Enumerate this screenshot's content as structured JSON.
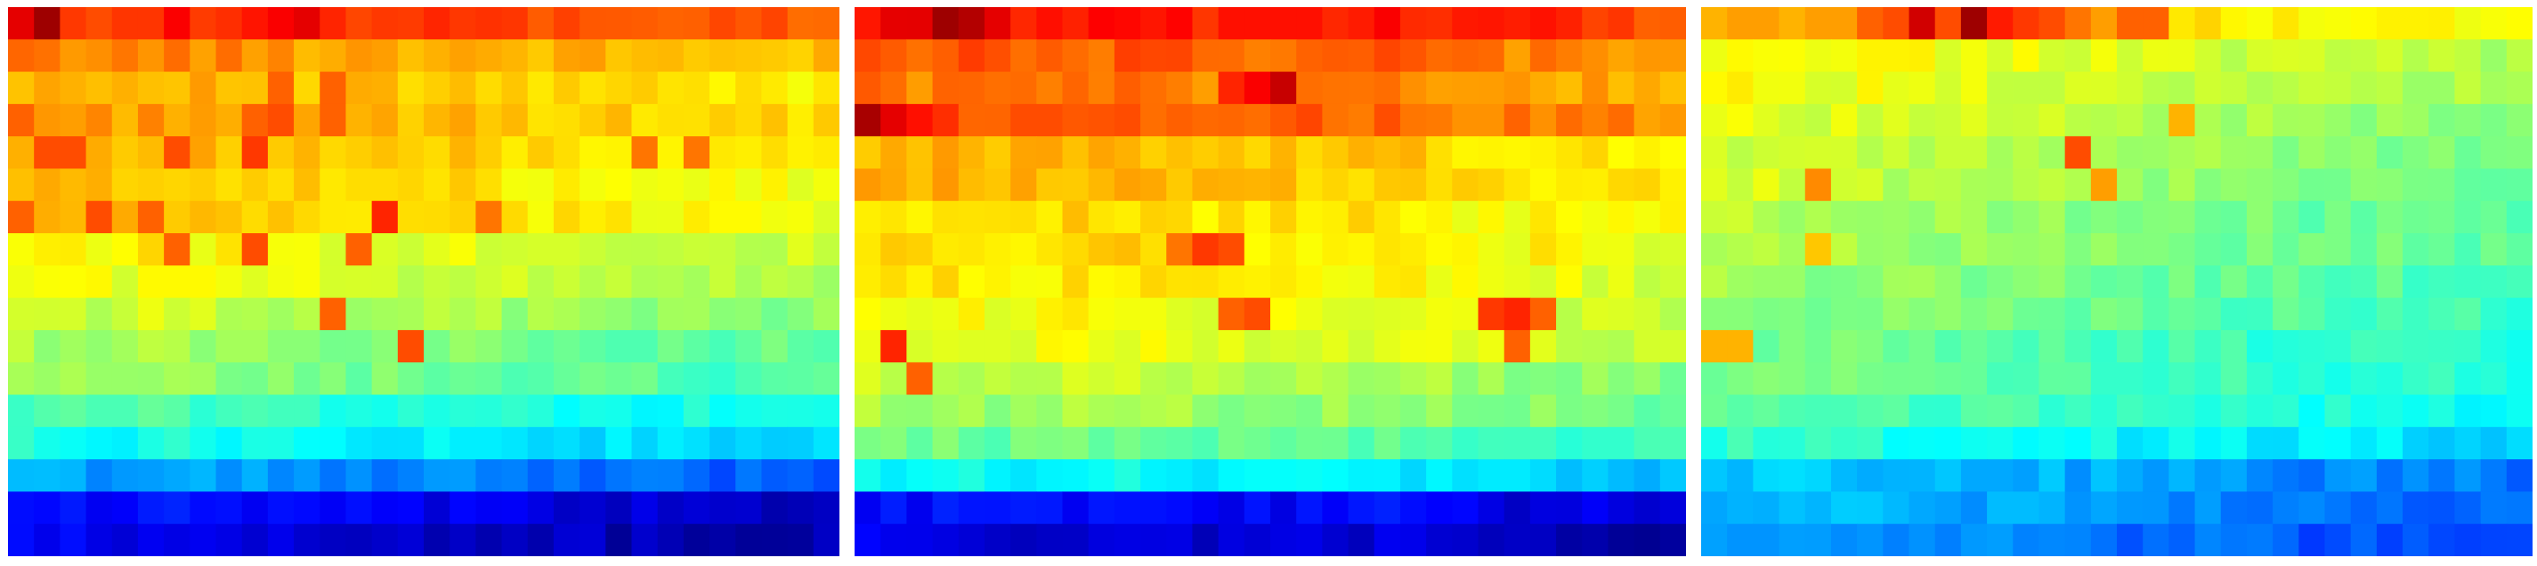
{
  "chart_data": [
    {
      "type": "heatmap",
      "colormap": "jet",
      "value_range": [
        0,
        1
      ],
      "rows": 17,
      "cols": 32,
      "row_profile": [
        0.83,
        0.73,
        0.69,
        0.71,
        0.69,
        0.67,
        0.67,
        0.62,
        0.6,
        0.56,
        0.52,
        0.5,
        0.43,
        0.38,
        0.27,
        0.12,
        0.09
      ],
      "col_profile": [
        0.02,
        0.02,
        0.02,
        0.01,
        0.01,
        0.02,
        0.02,
        0.01,
        0.01,
        0.0,
        0.0,
        -0.01,
        -0.01,
        -0.01,
        -0.01,
        -0.02,
        -0.02,
        -0.02,
        -0.02,
        -0.03,
        -0.03,
        -0.03,
        -0.03,
        -0.04,
        -0.04,
        -0.04,
        -0.04,
        -0.05,
        -0.05,
        -0.05,
        -0.05,
        -0.05
      ],
      "hot_cells": [
        [
          0,
          0,
          0.9
        ],
        [
          0,
          1,
          0.97
        ],
        [
          0,
          2,
          0.82
        ],
        [
          0,
          3,
          0.8
        ],
        [
          0,
          10,
          0.88
        ],
        [
          0,
          11,
          0.9
        ],
        [
          0,
          12,
          0.84
        ],
        [
          2,
          10,
          0.78
        ],
        [
          2,
          12,
          0.78
        ],
        [
          3,
          0,
          0.78
        ],
        [
          3,
          9,
          0.78
        ],
        [
          3,
          10,
          0.8
        ],
        [
          3,
          12,
          0.78
        ],
        [
          4,
          1,
          0.8
        ],
        [
          4,
          2,
          0.8
        ],
        [
          4,
          6,
          0.8
        ],
        [
          4,
          9,
          0.82
        ],
        [
          4,
          24,
          0.76
        ],
        [
          4,
          26,
          0.76
        ],
        [
          6,
          0,
          0.78
        ],
        [
          6,
          3,
          0.8
        ],
        [
          6,
          5,
          0.78
        ],
        [
          6,
          14,
          0.84
        ],
        [
          6,
          18,
          0.76
        ],
        [
          7,
          6,
          0.78
        ],
        [
          7,
          9,
          0.8
        ],
        [
          7,
          13,
          0.78
        ],
        [
          9,
          12,
          0.78
        ],
        [
          10,
          15,
          0.8
        ]
      ]
    },
    {
      "type": "heatmap",
      "colormap": "jet",
      "value_range": [
        0,
        1
      ],
      "rows": 17,
      "cols": 32,
      "row_profile": [
        0.85,
        0.77,
        0.74,
        0.78,
        0.68,
        0.68,
        0.65,
        0.65,
        0.63,
        0.61,
        0.6,
        0.55,
        0.52,
        0.47,
        0.36,
        0.12,
        0.08
      ],
      "col_profile": [
        0.02,
        0.02,
        0.01,
        0.02,
        0.02,
        0.0,
        0.01,
        0.01,
        0.02,
        0.01,
        0.02,
        0.01,
        0.01,
        0.0,
        0.0,
        0.0,
        0.0,
        0.0,
        0.0,
        0.0,
        0.01,
        0.0,
        -0.01,
        -0.02,
        -0.02,
        -0.03,
        -0.02,
        -0.03,
        -0.03,
        -0.04,
        -0.04,
        -0.04
      ],
      "hot_cells": [
        [
          0,
          2,
          0.9
        ],
        [
          0,
          3,
          0.97
        ],
        [
          0,
          4,
          0.95
        ],
        [
          0,
          5,
          0.9
        ],
        [
          0,
          14,
          0.86
        ],
        [
          0,
          15,
          0.86
        ],
        [
          0,
          16,
          0.86
        ],
        [
          0,
          17,
          0.86
        ],
        [
          2,
          14,
          0.84
        ],
        [
          2,
          15,
          0.88
        ],
        [
          2,
          16,
          0.93
        ],
        [
          3,
          0,
          0.96
        ],
        [
          3,
          1,
          0.9
        ],
        [
          3,
          2,
          0.86
        ],
        [
          3,
          3,
          0.83
        ],
        [
          3,
          6,
          0.8
        ],
        [
          3,
          7,
          0.8
        ],
        [
          3,
          10,
          0.8
        ],
        [
          7,
          12,
          0.76
        ],
        [
          7,
          13,
          0.82
        ],
        [
          7,
          14,
          0.8
        ],
        [
          9,
          14,
          0.78
        ],
        [
          9,
          15,
          0.8
        ],
        [
          9,
          24,
          0.82
        ],
        [
          9,
          25,
          0.84
        ],
        [
          9,
          26,
          0.78
        ],
        [
          10,
          1,
          0.84
        ],
        [
          10,
          25,
          0.78
        ],
        [
          11,
          2,
          0.78
        ]
      ]
    },
    {
      "type": "heatmap",
      "colormap": "jet",
      "value_range": [
        0,
        1
      ],
      "rows": 17,
      "cols": 32,
      "row_profile": [
        0.66,
        0.6,
        0.59,
        0.57,
        0.55,
        0.55,
        0.52,
        0.52,
        0.5,
        0.49,
        0.46,
        0.46,
        0.44,
        0.39,
        0.3,
        0.28,
        0.25
      ],
      "col_profile": [
        0.03,
        0.03,
        0.03,
        0.03,
        0.02,
        0.02,
        0.02,
        0.01,
        0.01,
        0.01,
        0.01,
        0.0,
        0.0,
        0.0,
        -0.01,
        -0.01,
        -0.02,
        -0.02,
        -0.02,
        -0.02,
        -0.03,
        -0.03,
        -0.03,
        -0.04,
        -0.04,
        -0.04,
        -0.04,
        -0.05,
        -0.05,
        -0.05,
        -0.06,
        -0.06
      ],
      "hot_cells": [
        [
          0,
          0,
          0.7
        ],
        [
          0,
          1,
          0.72
        ],
        [
          0,
          2,
          0.72
        ],
        [
          0,
          3,
          0.7
        ],
        [
          0,
          4,
          0.72
        ],
        [
          0,
          5,
          0.72
        ],
        [
          0,
          6,
          0.78
        ],
        [
          0,
          7,
          0.8
        ],
        [
          0,
          8,
          0.92
        ],
        [
          0,
          9,
          0.8
        ],
        [
          0,
          10,
          0.97
        ],
        [
          0,
          11,
          0.85
        ],
        [
          0,
          12,
          0.82
        ],
        [
          0,
          13,
          0.8
        ],
        [
          0,
          14,
          0.76
        ],
        [
          0,
          15,
          0.72
        ],
        [
          0,
          16,
          0.78
        ],
        [
          0,
          17,
          0.78
        ],
        [
          3,
          18,
          0.7
        ],
        [
          4,
          14,
          0.8
        ],
        [
          5,
          4,
          0.74
        ],
        [
          5,
          15,
          0.72
        ],
        [
          7,
          4,
          0.68
        ],
        [
          10,
          0,
          0.7
        ],
        [
          10,
          1,
          0.7
        ]
      ]
    }
  ]
}
